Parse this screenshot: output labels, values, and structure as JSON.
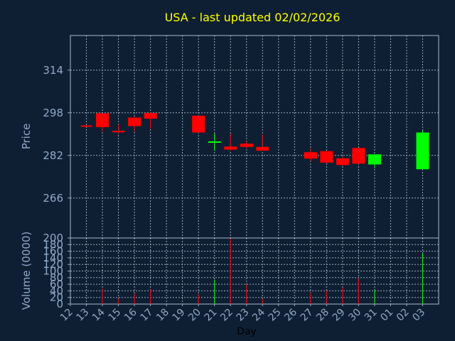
{
  "chart_data": {
    "type": "candlestick",
    "title": "USA - last updated 02/02/2026",
    "xlabel": "Day",
    "x_ticks": [
      "12",
      "13",
      "14",
      "15",
      "16",
      "17",
      "18",
      "19",
      "20",
      "21",
      "22",
      "23",
      "24",
      "25",
      "26",
      "27",
      "28",
      "29",
      "30",
      "31",
      "01",
      "02",
      "03"
    ],
    "price": {
      "ylabel": "Price",
      "ylim": [
        251,
        327
      ],
      "y_ticks": [
        266,
        282,
        298,
        314
      ],
      "grid": true,
      "candles": [
        {
          "day": "12",
          "open": 293.0,
          "high": 293.0,
          "low": 293.0,
          "close": 293.0,
          "dir": "down"
        },
        {
          "day": "13",
          "open": 297.8,
          "high": 297.8,
          "low": 291.0,
          "close": 292.6,
          "dir": "down"
        },
        {
          "day": "14",
          "open": 291.2,
          "high": 293.6,
          "low": 290.2,
          "close": 290.7,
          "dir": "down"
        },
        {
          "day": "15",
          "open": 296.2,
          "high": 296.5,
          "low": 290.8,
          "close": 293.0,
          "dir": "down"
        },
        {
          "day": "16",
          "open": 297.9,
          "high": 298.2,
          "low": 292.0,
          "close": 295.8,
          "dir": "down"
        },
        {
          "day": "19",
          "open": 296.9,
          "high": 296.9,
          "low": 290.4,
          "close": 290.6,
          "dir": "down"
        },
        {
          "day": "20",
          "open": 286.8,
          "high": 290.2,
          "low": 283.8,
          "close": 287.0,
          "dir": "up"
        },
        {
          "day": "21",
          "open": 285.3,
          "high": 290.2,
          "low": 283.8,
          "close": 284.2,
          "dir": "down"
        },
        {
          "day": "22",
          "open": 286.4,
          "high": 287.4,
          "low": 284.6,
          "close": 285.2,
          "dir": "down"
        },
        {
          "day": "23",
          "open": 285.2,
          "high": 289.8,
          "low": 283.8,
          "close": 283.8,
          "dir": "down"
        },
        {
          "day": "26",
          "open": 283.2,
          "high": 284.6,
          "low": 279.9,
          "close": 280.8,
          "dir": "down"
        },
        {
          "day": "27",
          "open": 283.6,
          "high": 283.6,
          "low": 279.0,
          "close": 279.3,
          "dir": "down"
        },
        {
          "day": "28",
          "open": 280.9,
          "high": 281.5,
          "low": 278.2,
          "close": 278.4,
          "dir": "down"
        },
        {
          "day": "29",
          "open": 284.8,
          "high": 284.8,
          "low": 278.7,
          "close": 278.9,
          "dir": "down"
        },
        {
          "day": "30",
          "open": 278.6,
          "high": 282.4,
          "low": 277.2,
          "close": 282.4,
          "dir": "up"
        },
        {
          "day": "02",
          "open": 276.8,
          "high": 291.6,
          "low": 276.8,
          "close": 290.6,
          "dir": "up"
        }
      ]
    },
    "volume": {
      "ylabel": "Volume (0000)",
      "ylim": [
        0,
        200
      ],
      "y_ticks": [
        0,
        20,
        40,
        60,
        80,
        100,
        120,
        140,
        160,
        180,
        200
      ],
      "bars": [
        {
          "day": "13",
          "value": 47,
          "dir": "down"
        },
        {
          "day": "14",
          "value": 16,
          "dir": "down"
        },
        {
          "day": "15",
          "value": 33,
          "dir": "down"
        },
        {
          "day": "16",
          "value": 44,
          "dir": "down"
        },
        {
          "day": "19",
          "value": 30,
          "dir": "down"
        },
        {
          "day": "20",
          "value": 74,
          "dir": "up"
        },
        {
          "day": "21",
          "value": 198,
          "dir": "down"
        },
        {
          "day": "22",
          "value": 60,
          "dir": "down"
        },
        {
          "day": "23",
          "value": 16,
          "dir": "down"
        },
        {
          "day": "26",
          "value": 36,
          "dir": "down"
        },
        {
          "day": "27",
          "value": 41,
          "dir": "down"
        },
        {
          "day": "28",
          "value": 50,
          "dir": "down"
        },
        {
          "day": "29",
          "value": 78,
          "dir": "down"
        },
        {
          "day": "30",
          "value": 44,
          "dir": "up"
        },
        {
          "day": "02",
          "value": 154,
          "dir": "up"
        }
      ]
    },
    "colors": {
      "background": "#0f1f33",
      "title": "#ffff00",
      "axis": "#8fa8c8",
      "grid": "#9aa8b8",
      "up": "#00ff00",
      "down": "#ff0000",
      "xlabel": "#000000"
    }
  }
}
